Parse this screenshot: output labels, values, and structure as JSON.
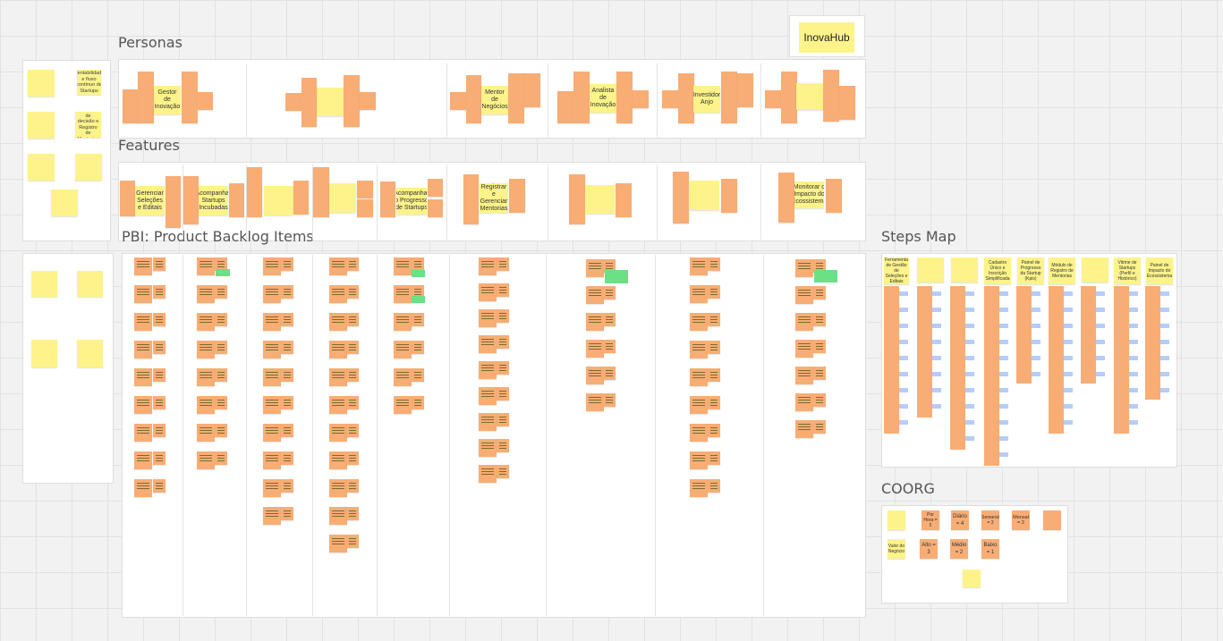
{
  "frames": {
    "personas": "Personas",
    "features": "Features",
    "pbi": "PBI: Product Backlog Items",
    "steps_map": "Steps Map",
    "coorg": "COORG"
  },
  "logo": "InovaHub",
  "left_notes": [
    "Rentabilidade e fluxo contínuo de Startups",
    "Avaliação de decisão e Registro de Mentorias"
  ],
  "personas": [
    "Gestor de Inovação",
    "Mentor de Negócios",
    "Analista de Inovação",
    "Investidor Anjo"
  ],
  "features": [
    "Gerenciar Seleções e Editais",
    "Acompanhar Startups Incubadas",
    "Acompanhar o Progresso de Startups",
    "Registrar e Gerenciar Mentorias",
    "Monitorar o Impacto do Ecossistema"
  ],
  "steps": [
    "Ferramenta de Gestão de Seleções e Editais",
    "Cadastro Único e Inscrição Simplificada",
    "Painel de Progresso da Startup (Kpis)",
    "Módulo de Registro de Mentorias",
    "Vitrine de Startups (Perfil e Histórico)",
    "Painel de Impacto do Ecossistema"
  ],
  "coorg": {
    "row1": [
      "Por Hora = 5",
      "Diário = 4",
      "Semanal = 3",
      "Mensal = 2"
    ],
    "row2": [
      "Valor do Negócio",
      "Alto = 3",
      "Médio = 2",
      "Baixo = 1"
    ]
  },
  "colors": {
    "sticky_yellow": "#fdf38a",
    "sticky_orange": "#f8ad74",
    "green": "#6be086",
    "blue": "#b5cdf7"
  }
}
